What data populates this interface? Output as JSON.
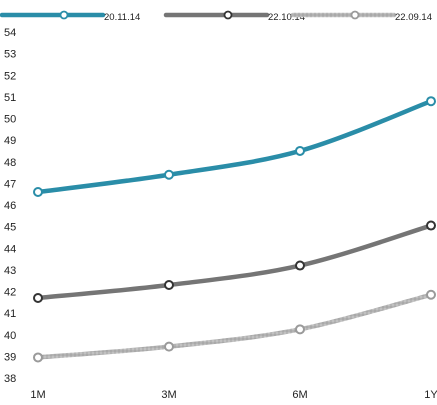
{
  "chart_data": {
    "type": "line",
    "title": "",
    "xlabel": "",
    "ylabel": "",
    "categories": [
      "1M",
      "3M",
      "6M",
      "1Y"
    ],
    "ylim": [
      38,
      54
    ],
    "yticks": [
      38,
      39,
      40,
      41,
      42,
      43,
      44,
      45,
      46,
      47,
      48,
      49,
      50,
      51,
      52,
      53,
      54
    ],
    "grid": false,
    "legend_position": "top",
    "series": [
      {
        "name": "20.11.14",
        "values": [
          46.6,
          47.4,
          48.5,
          50.8
        ],
        "color": "#2a8da8",
        "style": "solid"
      },
      {
        "name": "22.10.14",
        "values": [
          41.7,
          42.3,
          43.2,
          45.05
        ],
        "color": "#757575",
        "style": "solid"
      },
      {
        "name": "22.09.14",
        "values": [
          38.95,
          39.45,
          40.25,
          41.85
        ],
        "color": "#b3b3b3",
        "style": "textured"
      }
    ]
  }
}
